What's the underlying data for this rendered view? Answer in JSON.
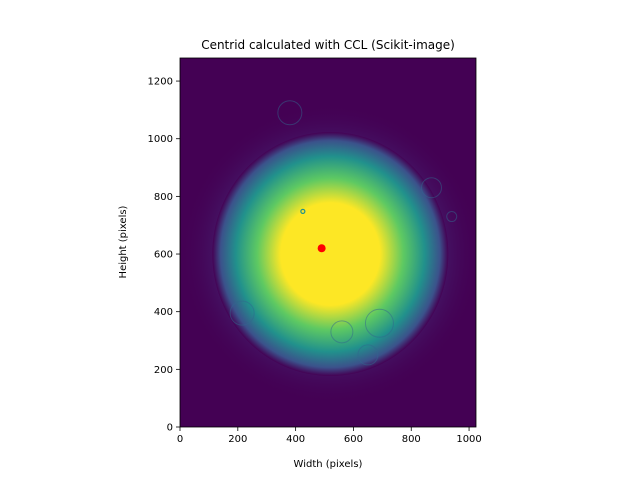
{
  "chart_data": {
    "type": "heatmap",
    "title": "Centrid calculated with CCL (Scikit-image)",
    "xlabel": "Width (pixels)",
    "ylabel": "Height (pixels)",
    "xlim": [
      0,
      1024
    ],
    "ylim": [
      0,
      1280
    ],
    "xticks": [
      0,
      200,
      400,
      600,
      800,
      1000
    ],
    "yticks": [
      0,
      200,
      400,
      600,
      800,
      1000,
      1200
    ],
    "colormap": "viridis",
    "grid": false,
    "background_color": "#440154",
    "beam": {
      "center": [
        520,
        600
      ],
      "core_color": "#fde725",
      "mid_color": "#5ec962",
      "edge_color": "#3b528b"
    },
    "centroid": {
      "x": 490,
      "y": 620,
      "color": "#ff0000"
    }
  }
}
